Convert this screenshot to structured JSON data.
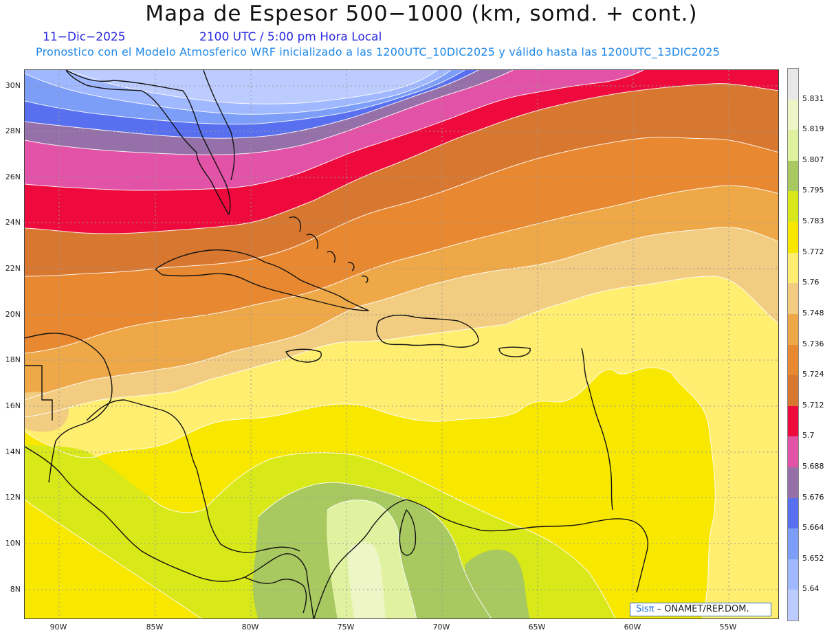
{
  "header": {
    "title": "Mapa de Espesor 500−1000 (km, somd. + cont.)",
    "date": "11−Dic−2025",
    "valid_time": "2100 UTC / 5:00 pm Hora Local",
    "description": "Pronostico con el Modelo Atmosferico WRF inicializado a las 1200UTC_10DIC2025 y válido hasta las  1200UTC_13DIC2025"
  },
  "axes": {
    "lat_labels": [
      "30N",
      "28N",
      "26N",
      "24N",
      "22N",
      "20N",
      "18N",
      "16N",
      "14N",
      "12N",
      "10N",
      "8N"
    ],
    "lon_labels": [
      "90W",
      "85W",
      "80W",
      "75W",
      "70W",
      "65W",
      "60W",
      "55W"
    ]
  },
  "colorbar": {
    "labels": [
      "5.831",
      "5.819",
      "5.807",
      "5.795",
      "5.783",
      "5.772",
      "5.76",
      "5.748",
      "5.736",
      "5.724",
      "5.712",
      "5.7",
      "5.688",
      "5.676",
      "5.664",
      "5.652",
      "5.64"
    ],
    "colors": [
      "#e8e8e8",
      "#eef6c8",
      "#e0f2a0",
      "#a8c860",
      "#d8e818",
      "#f8e800",
      "#ffee70",
      "#f2cc80",
      "#eea848",
      "#e88830",
      "#d87830",
      "#ee0a3c",
      "#e252a6",
      "#9670a8",
      "#5870f0",
      "#7c9ef8",
      "#a0b8ff",
      "#bcccff"
    ]
  },
  "credit": {
    "logo": "Sisπ",
    "org": " – ONAMET/REP.DOM."
  }
}
